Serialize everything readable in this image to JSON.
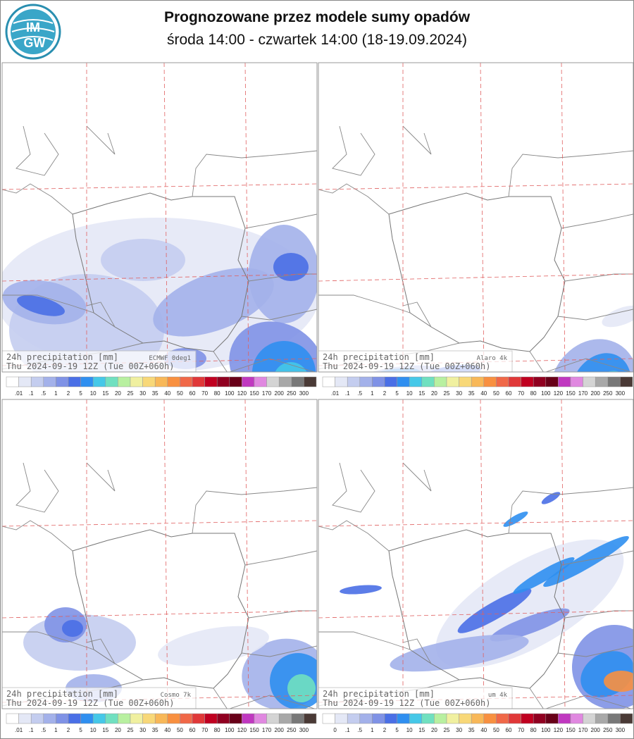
{
  "header": {
    "title": "Prognozowane przez modele sumy opadów",
    "subtitle": "środa 14:00 - czwartek 14:00 (18-19.09.2024)",
    "logo": {
      "top": "IM",
      "bottom": "GW"
    }
  },
  "panels": [
    {
      "label": "24h precipitation  [mm]",
      "model": "ECMWF 0deg1",
      "time": "Thu 2024-09-19 12Z (Tue 00Z+060h)",
      "scale": [
        ".01",
        ".1",
        ".5",
        "1",
        "2",
        "5",
        "10",
        "15",
        "20",
        "25",
        "30",
        "35",
        "40",
        "50",
        "60",
        "70",
        "80",
        "100",
        "120",
        "150",
        "170",
        "200",
        "250",
        "300"
      ]
    },
    {
      "label": "24h precipitation  [mm]",
      "model": "Alaro 4k",
      "time": "Thu 2024-09-19 12Z (Tue 00Z+060h)",
      "scale": [
        ".01",
        ".1",
        ".5",
        "1",
        "2",
        "5",
        "10",
        "15",
        "20",
        "25",
        "30",
        "35",
        "40",
        "50",
        "60",
        "70",
        "80",
        "100",
        "120",
        "150",
        "170",
        "200",
        "250",
        "300"
      ]
    },
    {
      "label": "24h precipitation  [mm]",
      "model": "Cosmo 7k",
      "time": "Thu 2024-09-19 12Z (Tue 00Z+060h)",
      "scale": [
        ".01",
        ".1",
        ".5",
        "1",
        "2",
        "5",
        "10",
        "15",
        "20",
        "25",
        "30",
        "35",
        "40",
        "50",
        "60",
        "70",
        "80",
        "100",
        "120",
        "150",
        "170",
        "200",
        "250",
        "300"
      ]
    },
    {
      "label": "24h precipitation  [mm]",
      "model": "um 4k",
      "time": "Thu 2024-09-19 12Z (Tue 00Z+060h)",
      "scale": [
        "0",
        ".1",
        ".5",
        "1",
        "2",
        "5",
        "10",
        "15",
        "20",
        "25",
        "30",
        "35",
        "40",
        "50",
        "60",
        "70",
        "80",
        "100",
        "120",
        "150",
        "170",
        "200",
        "250",
        "300"
      ]
    }
  ]
}
